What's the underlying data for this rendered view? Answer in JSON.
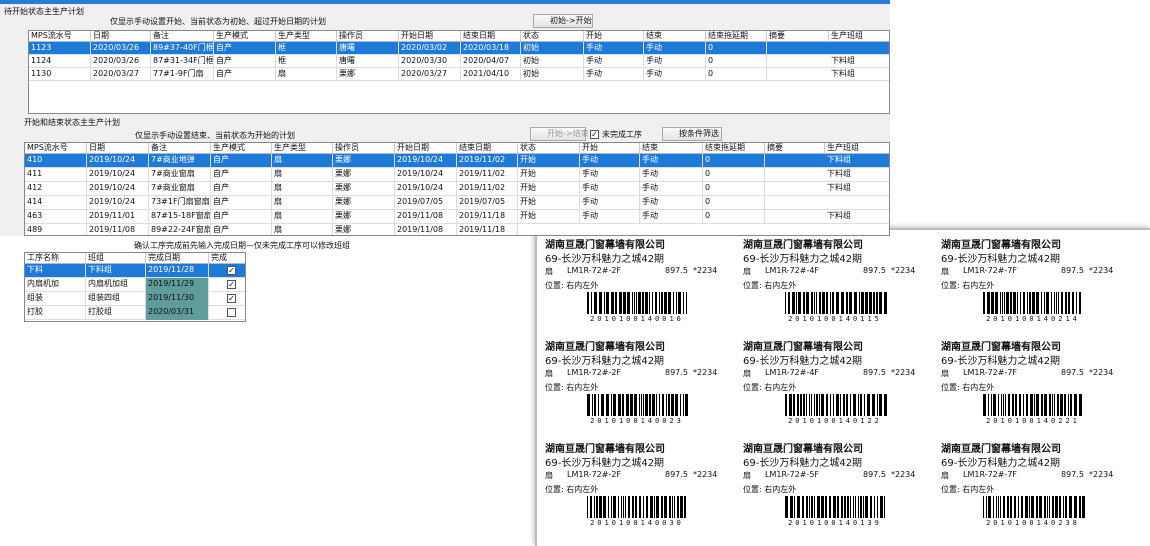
{
  "pending": {
    "title": "待开始状态主生产计划",
    "note": "仅显示手动设置开始、当前状态为初始、超过开始日期的计划",
    "button": "初始->开始",
    "selected": 0,
    "headers": [
      "MPS流水号",
      "日期",
      "备注",
      "生产模式",
      "生产类型",
      "操作员",
      "开始日期",
      "结束日期",
      "状态",
      "开始",
      "结束",
      "结束拖延期",
      "摘要",
      "生产班组"
    ],
    "rows": [
      [
        "1123",
        "2020/03/26",
        "89#37-40F门框",
        "自产",
        "框",
        "唐曙",
        "2020/03/02",
        "2020/03/18",
        "初始",
        "手动",
        "手动",
        "0",
        null,
        null
      ],
      [
        "1124",
        "2020/03/26",
        "87#31-34F门框",
        "自产",
        "框",
        "唐曙",
        "2020/03/30",
        "2020/04/07",
        "初始",
        "手动",
        "手动",
        "0",
        null,
        "下料组"
      ],
      [
        "1130",
        "2020/03/27",
        "77#1-9F门扇",
        "自产",
        "扇",
        "栗娜",
        "2020/03/27",
        "2021/04/10",
        "初始",
        "手动",
        "手动",
        "0",
        null,
        "下料组"
      ]
    ]
  },
  "active": {
    "title": "开始和结束状态主生产计划",
    "note": "仅显示手动设置结束、当前状态为开始的计划",
    "button": "开始->结束",
    "checkbox": "未完成工序",
    "filter": "按条件筛选",
    "selected": 0,
    "headers": [
      "MPS流水号",
      "日期",
      "备注",
      "生产模式",
      "生产类型",
      "操作员",
      "开始日期",
      "结束日期",
      "状态",
      "开始",
      "结束",
      "结束拖延期",
      "摘要",
      "生产班组"
    ],
    "rows": [
      [
        "410",
        "2019/10/24",
        "7#商业地弹",
        "自产",
        "扇",
        "栗娜",
        "2019/10/24",
        "2019/11/02",
        "开始",
        "手动",
        "手动",
        "0",
        null,
        "下料组"
      ],
      [
        "411",
        "2019/10/24",
        "7#商业窗扇",
        "自产",
        "扇",
        "栗娜",
        "2019/10/24",
        "2019/11/02",
        "开始",
        "手动",
        "手动",
        "0",
        null,
        "下料组"
      ],
      [
        "412",
        "2019/10/24",
        "7#商业窗扇",
        "自产",
        "扇",
        "栗娜",
        "2019/10/24",
        "2019/11/02",
        "开始",
        "手动",
        "手动",
        "0",
        null,
        "下料组"
      ],
      [
        "414",
        "2019/10/24",
        "73#1F门扇窗扇",
        "自产",
        "扇",
        "栗娜",
        "2019/07/05",
        "2019/07/05",
        "开始",
        "手动",
        "手动",
        "0",
        null,
        null
      ],
      [
        "463",
        "2019/11/01",
        "87#15-18F窗扇",
        "自产",
        "扇",
        "栗娜",
        "2019/11/08",
        "2019/11/18",
        "开始",
        "手动",
        "手动",
        "0",
        null,
        "下料组"
      ],
      [
        "489",
        "2019/11/08",
        "89#22-24F窗扇",
        "自产",
        "扇",
        "栗娜",
        "2019/11/08",
        "2019/11/18"
      ]
    ]
  },
  "process": {
    "note": "确认工序完成前先输入完成日期—仅未完成工序可以修改班组",
    "selected": 0,
    "headers": [
      "工序名称",
      "班组",
      "完成日期",
      "完成"
    ],
    "rows": [
      [
        "下料",
        "下料组",
        "2019/11/28"
      ],
      [
        "内扇机加",
        "内扇机加组",
        "2019/11/29"
      ],
      [
        "组装",
        "组装四组",
        "2019/11/30"
      ],
      [
        "打胶",
        "打胶组",
        "2020/03/31"
      ]
    ],
    "done": [
      true,
      true,
      true,
      false
    ]
  },
  "labels": [
    {
      "company": "湖南亘晟门窗幕墙有限公司",
      "project": "69-长沙万科魅力之城42期",
      "type": "扇",
      "code": "LM1R-72#-2F",
      "size": "897.5",
      "qty": "*2234",
      "position": "位置: 右内左外",
      "barcode": "2010100140016"
    },
    {
      "company": "湖南亘晟门窗幕墙有限公司",
      "project": "69-长沙万科魅力之城42期",
      "type": "扇",
      "code": "LM1R-72#-4F",
      "size": "897.5",
      "qty": "*2234",
      "position": "位置: 右内左外",
      "barcode": "2010100140115"
    },
    {
      "company": "湖南亘晟门窗幕墙有限公司",
      "project": "69-长沙万科魅力之城42期",
      "type": "扇",
      "code": "LM1R-72#-7F",
      "size": "897.5",
      "qty": "*2234",
      "position": "位置: 右内左外",
      "barcode": "2010100140214"
    },
    {
      "company": "湖南亘晟门窗幕墙有限公司",
      "project": "69-长沙万科魅力之城42期",
      "type": "扇",
      "code": "LM1R-72#-2F",
      "size": "897.5",
      "qty": "*2234",
      "position": "位置: 右内左外",
      "barcode": "2010100140023"
    },
    {
      "company": "湖南亘晟门窗幕墙有限公司",
      "project": "69-长沙万科魅力之城42期",
      "type": "扇",
      "code": "LM1R-72#-4F",
      "size": "897.5",
      "qty": "*2234",
      "position": "位置: 右内左外",
      "barcode": "2010100140122"
    },
    {
      "company": "湖南亘晟门窗幕墙有限公司",
      "project": "69-长沙万科魅力之城42期",
      "type": "扇",
      "code": "LM1R-72#-7F",
      "size": "897.5",
      "qty": "*2234",
      "position": "位置: 右内左外",
      "barcode": "2010100140221"
    },
    {
      "company": "湖南亘晟门窗幕墙有限公司",
      "project": "69-长沙万科魅力之城42期",
      "type": "扇",
      "code": "LM1R-72#-2F",
      "size": "897.5",
      "qty": "*2234",
      "position": "位置: 右内左外",
      "barcode": "2010100140030"
    },
    {
      "company": "湖南亘晟门窗幕墙有限公司",
      "project": "69-长沙万科魅力之城42期",
      "type": "扇",
      "code": "LM1R-72#-5F",
      "size": "897.5",
      "qty": "*2234",
      "position": "位置: 右内左外",
      "barcode": "2010100140139"
    },
    {
      "company": "湖南亘晟门窗幕墙有限公司",
      "project": "69-长沙万科魅力之城42期",
      "type": "扇",
      "code": "LM1R-72#-7F",
      "size": "897.5",
      "qty": "*2234",
      "position": "位置: 右内左外",
      "barcode": "2010100140238"
    }
  ]
}
